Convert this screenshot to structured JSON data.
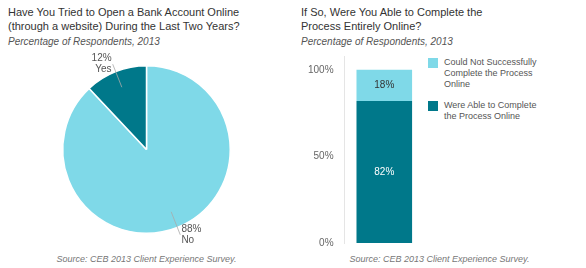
{
  "chart_data": [
    {
      "type": "pie",
      "title": "Have You Tried to Open a Bank Account Online\n(through a website) During the Last Two Years?",
      "subtitle": "Percentage of Respondents, 2013",
      "source": "Source: CEB 2013 Client Experience Survey.",
      "categories": [
        "No",
        "Yes"
      ],
      "values": [
        88,
        12
      ],
      "value_labels": [
        "88%\nNo",
        "12%\nYes"
      ],
      "colors": [
        "#7fd9e8",
        "#00788a"
      ],
      "data_labels": true
    },
    {
      "type": "bar",
      "title": "If So, Were You Able to Complete the\nProcess Entirely Online?",
      "subtitle": "Percentage of Respondents, 2013",
      "source": "Source: CEB 2013 Client Experience Survey.",
      "categories": [
        null
      ],
      "series": [
        {
          "name": "Were Able to Complete\nthe Process Online",
          "color": "#00788a",
          "values": [
            82
          ],
          "value_labels": [
            "82%"
          ]
        },
        {
          "name": "Could Not Successfully\nComplete the Process\nOnline",
          "color": "#7fd9e8",
          "values": [
            18
          ],
          "value_labels": [
            "18%"
          ]
        }
      ],
      "stacked": true,
      "data_labels": true,
      "ylim": [
        0,
        108
      ],
      "yticks": [
        {
          "value": 0,
          "label": "0%"
        },
        {
          "value": 50,
          "label": "50%"
        },
        {
          "value": 100,
          "label": "100%"
        }
      ],
      "grid": false,
      "legend": "right"
    }
  ]
}
